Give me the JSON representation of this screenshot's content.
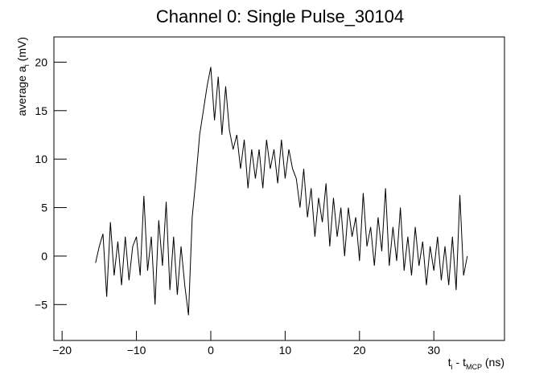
{
  "chart_data": {
    "type": "line",
    "title": "Channel 0: Single Pulse_30104",
    "xlabel_parts": [
      "t",
      "i",
      " - t",
      "MCP",
      " (ns)"
    ],
    "ylabel_parts": [
      "average a",
      "i",
      " (mV)"
    ],
    "xlim": [
      -21.1,
      39.5
    ],
    "ylim": [
      -8.7,
      22.6
    ],
    "xticks": [
      {
        "value": -20,
        "label": "−20"
      },
      {
        "value": -10,
        "label": "−10"
      },
      0,
      10,
      20,
      30
    ],
    "yticks": [
      {
        "value": -5,
        "label": "−5"
      },
      0,
      5,
      10,
      15,
      20
    ],
    "x": [
      -15.5,
      -15,
      -14.5,
      -14,
      -13.5,
      -13,
      -12.5,
      -12,
      -11.5,
      -11,
      -10.5,
      -10,
      -9.5,
      -9,
      -8.5,
      -8,
      -7.5,
      -7,
      -6.5,
      -6,
      -5.5,
      -5,
      -4.5,
      -4,
      -3.5,
      -3,
      -2.5,
      -2,
      -1.5,
      -1,
      -0.5,
      0,
      0.5,
      1,
      1.5,
      2,
      2.5,
      3,
      3.5,
      4,
      4.5,
      5,
      5.5,
      6,
      6.5,
      7,
      7.5,
      8,
      8.5,
      9,
      9.5,
      10,
      10.5,
      11,
      11.5,
      12,
      12.5,
      13,
      13.5,
      14,
      14.5,
      15,
      15.5,
      16,
      16.5,
      17,
      17.5,
      18,
      18.5,
      19,
      19.5,
      20,
      20.5,
      21,
      21.5,
      22,
      22.5,
      23,
      23.5,
      24,
      24.5,
      25,
      25.5,
      26,
      26.5,
      27,
      27.5,
      28,
      28.5,
      29,
      29.5,
      30,
      30.5,
      31,
      31.5,
      32,
      32.5,
      33,
      33.5,
      34,
      34.5
    ],
    "series": [
      {
        "color": "#000000",
        "values": [
          -0.7,
          1,
          2.3,
          -4.2,
          3.5,
          -2,
          1.5,
          -3,
          2,
          -2.5,
          1,
          2,
          -2,
          6.2,
          -1.5,
          2,
          -5,
          3.7,
          -1,
          5.6,
          -3.5,
          2,
          -4,
          1,
          -3,
          -6.1,
          4,
          8,
          12.5,
          15,
          17.5,
          19.5,
          14,
          18.5,
          12.5,
          17.5,
          13,
          11,
          12.5,
          9,
          12,
          7,
          11,
          8,
          11,
          7,
          12,
          9,
          11,
          7.5,
          12,
          8,
          11,
          9,
          8,
          5,
          9,
          4,
          7,
          2,
          6,
          3.5,
          7.5,
          1,
          6,
          2,
          5,
          0,
          5,
          2,
          4,
          -0.5,
          6.5,
          1,
          3,
          -1,
          4,
          0.5,
          7,
          -1,
          3,
          -0.5,
          5,
          -1.5,
          2,
          -2,
          3,
          -1,
          1.5,
          -3,
          1,
          -1.5,
          2,
          -2.5,
          1,
          -3,
          2,
          -3.5,
          6.3,
          -2,
          0
        ]
      }
    ]
  }
}
